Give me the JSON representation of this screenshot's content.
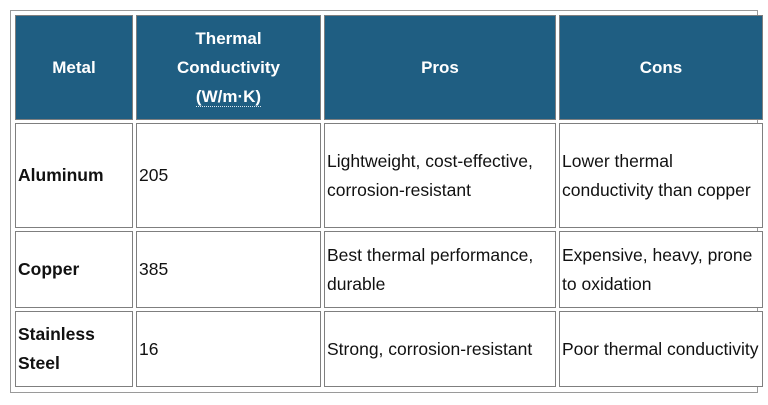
{
  "table": {
    "headers": {
      "metal": "Metal",
      "conductivity_line1": "Thermal",
      "conductivity_line2": "Conductivity",
      "conductivity_unit": "(W/m·K)",
      "pros": "Pros",
      "cons": "Cons"
    },
    "rows": [
      {
        "metal": "Aluminum",
        "conductivity": "205",
        "pros": "Lightweight, cost-effective, corrosion-resistant",
        "cons": "Lower thermal conductivity than copper"
      },
      {
        "metal": "Copper",
        "conductivity": "385",
        "pros": "Best thermal performance, durable",
        "cons": "Expensive, heavy, prone to oxidation"
      },
      {
        "metal": "Stainless Steel",
        "conductivity": "16",
        "pros": "Strong, corrosion-resistant",
        "cons": "Poor thermal conductivity"
      }
    ]
  },
  "colors": {
    "header_background": "#1f5e82",
    "header_text": "#ffffff",
    "cell_border": "#7f7f7f"
  }
}
